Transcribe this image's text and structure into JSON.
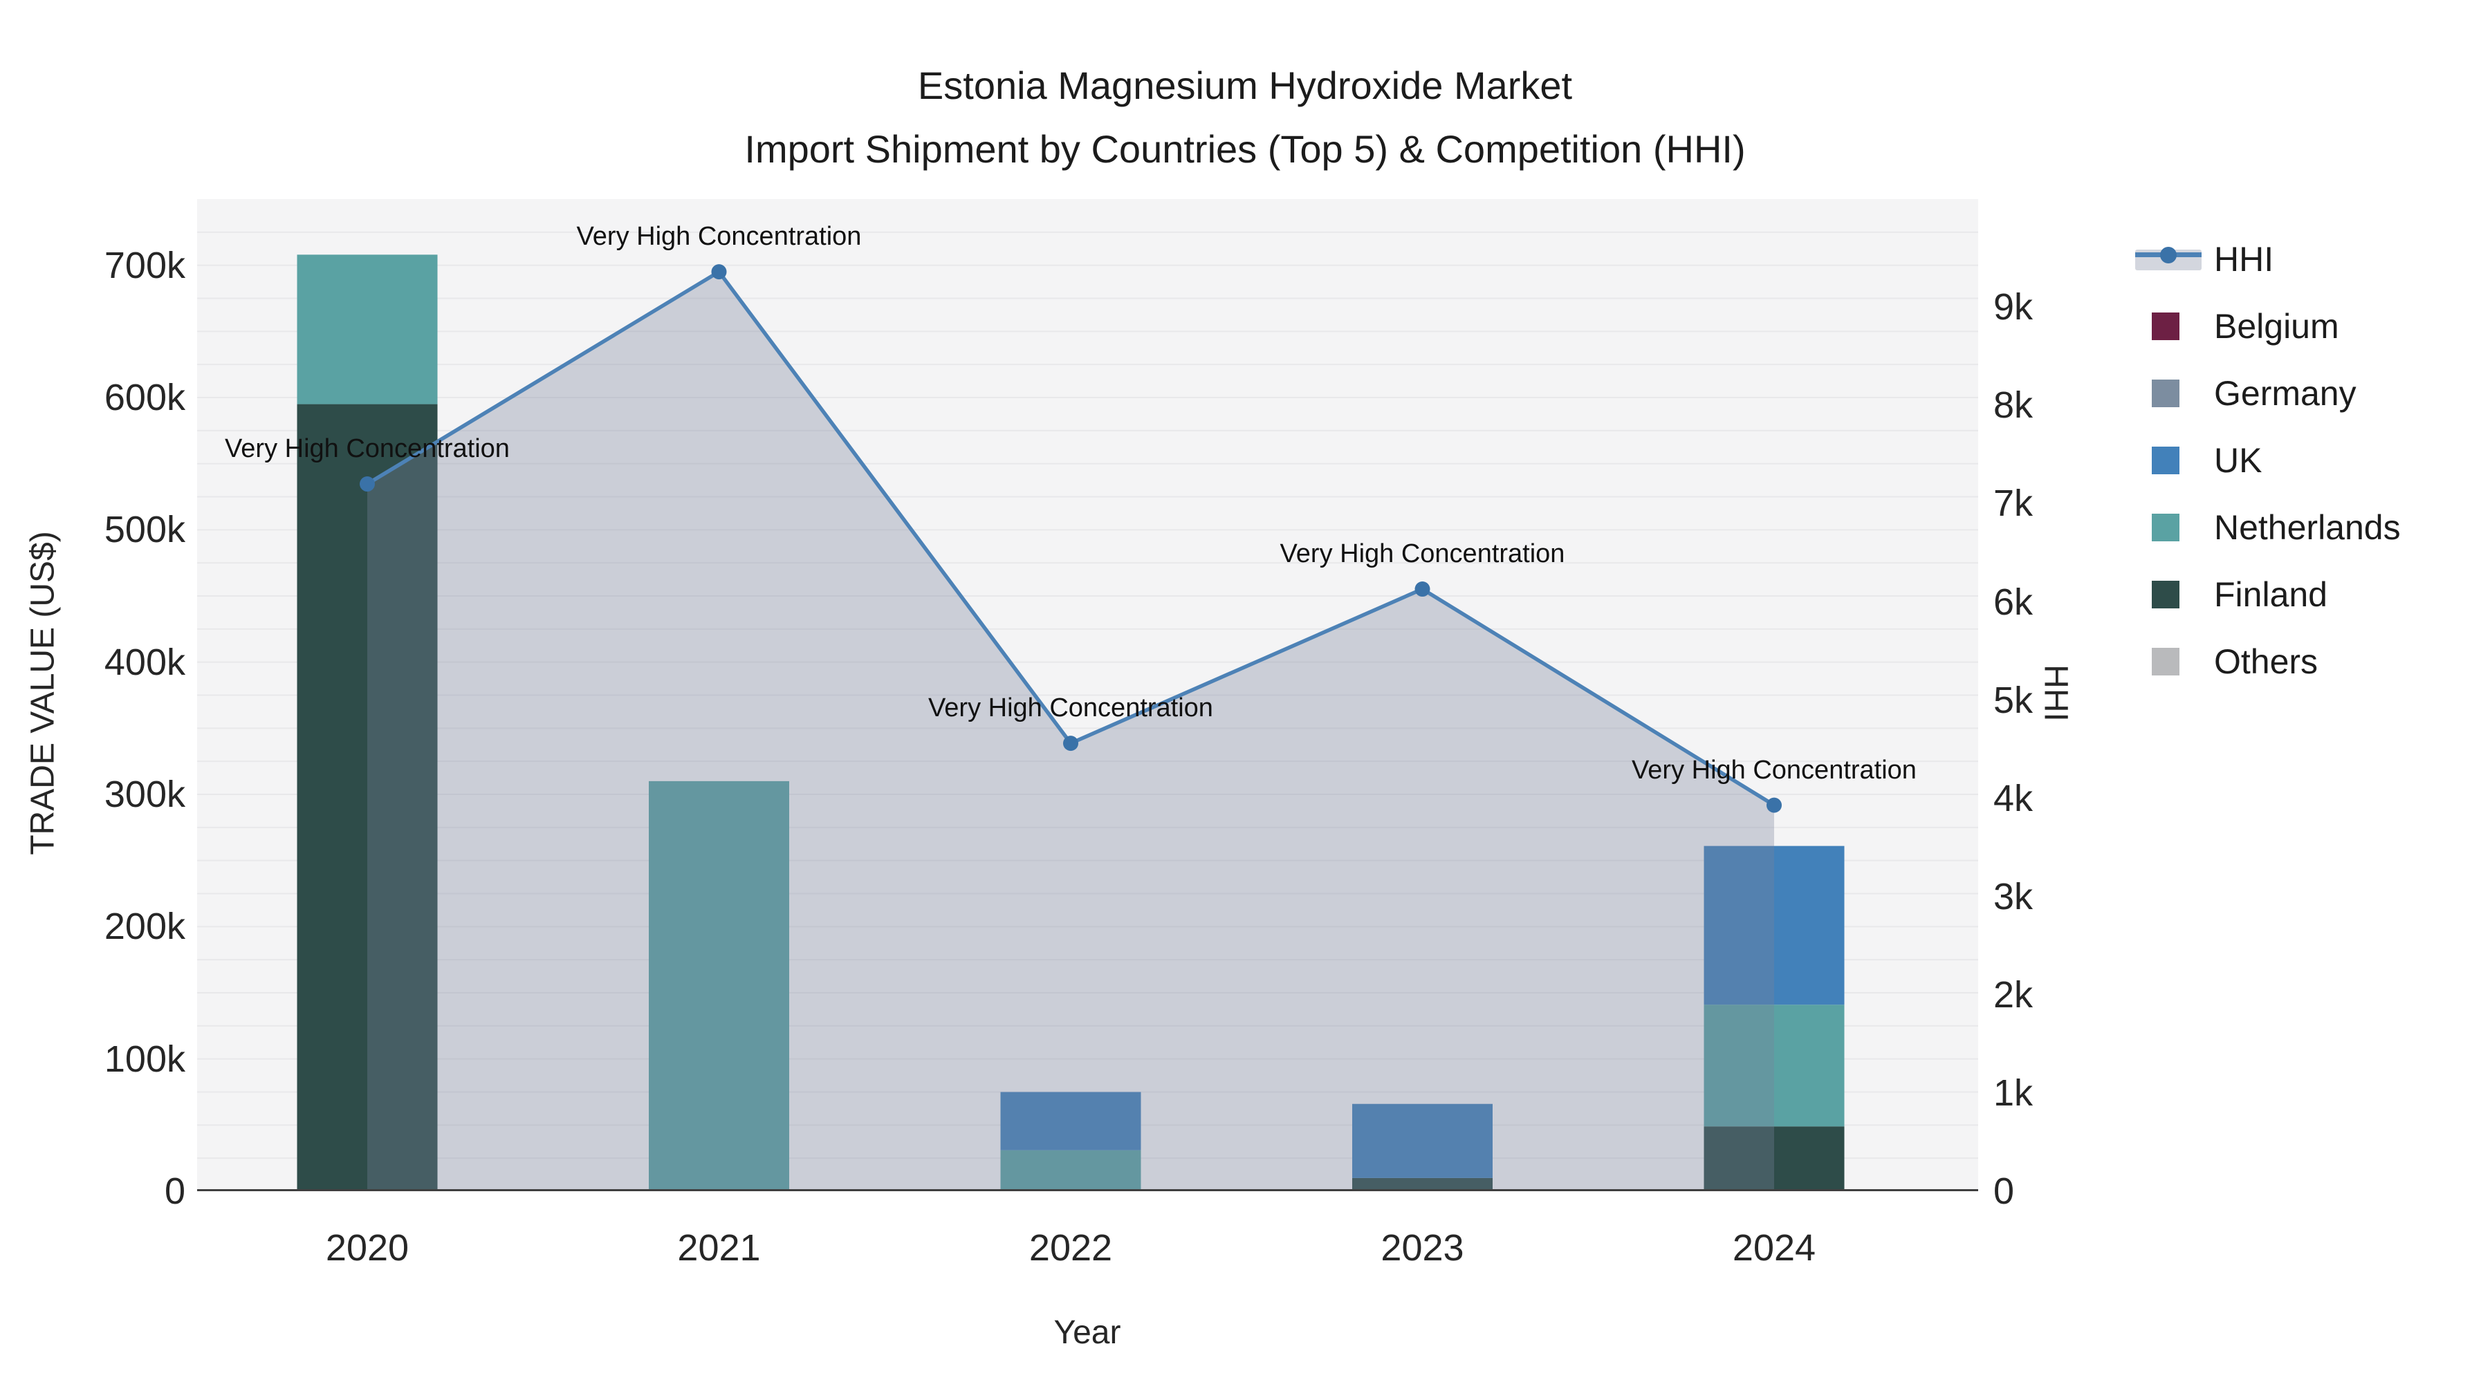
{
  "figure": {
    "title_line1": "Estonia Magnesium Hydroxide Market",
    "title_line2": "Import Shipment by Countries (Top 5) & Competition (HHI)"
  },
  "axes": {
    "left": {
      "title": "TRADE VALUE (US$)",
      "tick_labels": [
        "0",
        "100k",
        "200k",
        "300k",
        "400k",
        "500k",
        "600k",
        "700k"
      ],
      "tick_values": [
        0,
        100000,
        200000,
        300000,
        400000,
        500000,
        600000,
        700000
      ]
    },
    "right": {
      "title": "HHI",
      "tick_labels": [
        "0",
        "1k",
        "2k",
        "3k",
        "4k",
        "5k",
        "6k",
        "7k",
        "8k",
        "9k"
      ],
      "tick_values": [
        0,
        1000,
        2000,
        3000,
        4000,
        5000,
        6000,
        7000,
        8000,
        9000
      ]
    },
    "x": {
      "title": "Year",
      "categories": [
        "2020",
        "2021",
        "2022",
        "2023",
        "2024"
      ]
    }
  },
  "legend": {
    "items": [
      {
        "label": "HHI",
        "type": "line",
        "color": "#4d82b6"
      },
      {
        "label": "Belgium",
        "type": "square",
        "color": "#6d2044"
      },
      {
        "label": "Germany",
        "type": "square",
        "color": "#7c8da0"
      },
      {
        "label": "UK",
        "type": "square",
        "color": "#4281ba"
      },
      {
        "label": "Netherlands",
        "type": "square",
        "color": "#5aa2a3"
      },
      {
        "label": "Finland",
        "type": "square",
        "color": "#2e4c49"
      },
      {
        "label": "Others",
        "type": "square",
        "color": "#b9babc"
      }
    ]
  },
  "chart_data": {
    "type": "combo: stacked bar + line with area fill (dual axis)",
    "title": "Estonia Magnesium Hydroxide Market — Import Shipment by Countries (Top 5) & Competition (HHI)",
    "categories": [
      "2020",
      "2021",
      "2022",
      "2023",
      "2024"
    ],
    "xlabel": "Year",
    "ylabel_left": "TRADE VALUE (US$)",
    "ylabel_right": "HHI",
    "ylim_left": [
      0,
      750000
    ],
    "ylim_right": [
      0,
      10100
    ],
    "grid": {
      "show": true,
      "interval": 25000,
      "color": "#e8e8ea"
    },
    "legend_position": "right",
    "plot_bg": "#f4f4f5",
    "axis_line_color": "#3f3f3f",
    "bar_unit": "US$",
    "stack_order_bottom_to_top": [
      "Others",
      "Finland",
      "Netherlands",
      "UK",
      "Germany",
      "Belgium"
    ],
    "bar_series": [
      {
        "name": "Belgium",
        "color": "#6d2044",
        "values": [
          0,
          0,
          0,
          0,
          0
        ]
      },
      {
        "name": "Germany",
        "color": "#7c8da0",
        "values": [
          0,
          0,
          0,
          0,
          0
        ]
      },
      {
        "name": "UK",
        "color": "#4281ba",
        "values": [
          0,
          0,
          44000,
          56000,
          120000
        ]
      },
      {
        "name": "Netherlands",
        "color": "#5aa2a3",
        "values": [
          113000,
          310000,
          31000,
          0,
          92000
        ]
      },
      {
        "name": "Finland",
        "color": "#2e4c49",
        "values": [
          595000,
          0,
          0,
          10000,
          49000
        ]
      },
      {
        "name": "Others",
        "color": "#b9babc",
        "values": [
          0,
          0,
          0,
          0,
          0
        ]
      }
    ],
    "bar_totals": [
      708000,
      310000,
      75000,
      66000,
      261000
    ],
    "line_series": {
      "name": "HHI",
      "color": "#4d82b6",
      "marker_color": "#3a72a8",
      "area_fill": "rgba(120,132,155,0.33)",
      "values": [
        7200,
        9360,
        4560,
        6130,
        3930
      ]
    },
    "annotations": [
      {
        "x": "2020",
        "text": "Very High Concentration"
      },
      {
        "x": "2021",
        "text": "Very High Concentration"
      },
      {
        "x": "2022",
        "text": "Very High Concentration"
      },
      {
        "x": "2023",
        "text": "Very High Concentration"
      },
      {
        "x": "2024",
        "text": "Very High Concentration"
      }
    ]
  }
}
